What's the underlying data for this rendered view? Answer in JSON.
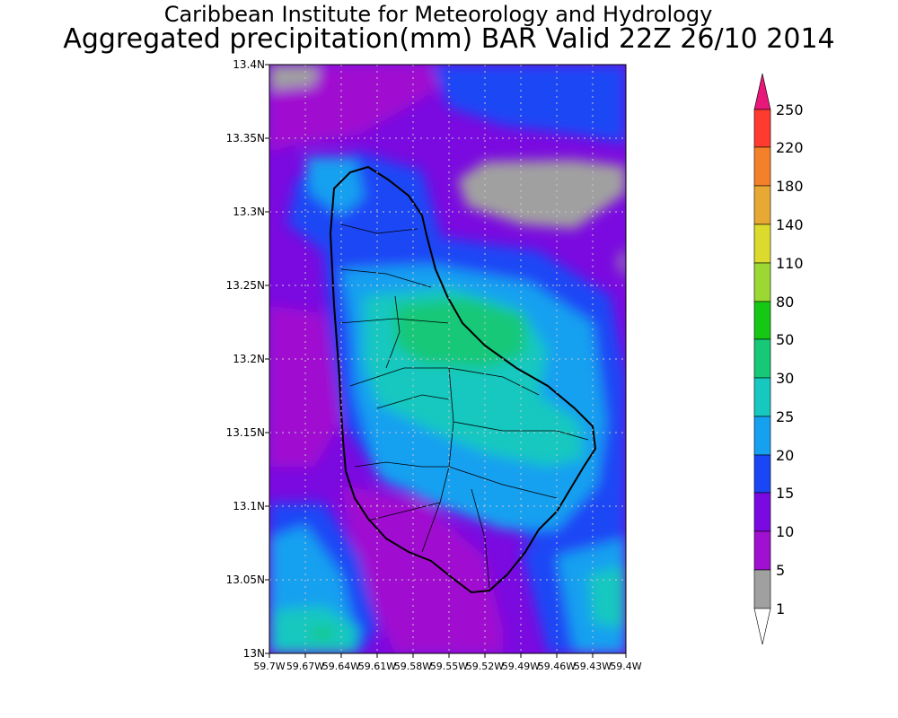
{
  "header": {
    "institution": "Caribbean Institute for Meteorology and Hydrology",
    "product": "Aggregated precipitation(mm) BAR Valid 22Z 26/10 2014"
  },
  "map": {
    "lat_ticks": [
      "13.4N",
      "13.35N",
      "13.3N",
      "13.25N",
      "13.2N",
      "13.15N",
      "13.1N",
      "13.05N",
      "13N"
    ],
    "lon_ticks": [
      "59.7W",
      "59.67W",
      "59.64W",
      "59.61W",
      "59.58W",
      "59.55W",
      "59.52W",
      "59.49W",
      "59.46W",
      "59.43W",
      "59.4W"
    ],
    "lat_range": [
      13.0,
      13.4
    ],
    "lon_range_west": [
      59.7,
      59.4
    ]
  },
  "legend": {
    "levels": [
      "250",
      "220",
      "180",
      "140",
      "110",
      "80",
      "50",
      "30",
      "25",
      "20",
      "15",
      "10",
      "5",
      "1"
    ],
    "colors": {
      "gt250": "#e8177a",
      "b220_250": "#ff3b2f",
      "b180_220": "#f5802a",
      "b140_180": "#e8a834",
      "b110_140": "#ddda2e",
      "b80_110": "#9bd834",
      "b50_80": "#14c814",
      "b30_50": "#16c878",
      "b25_30": "#16c8c0",
      "b20_25": "#16a0f0",
      "b15_20": "#1a46f5",
      "b10_15": "#7a0ae0",
      "b5_10": "#a010d0",
      "b1_5": "#a0a0a0",
      "lt1": "#ffffff"
    }
  }
}
